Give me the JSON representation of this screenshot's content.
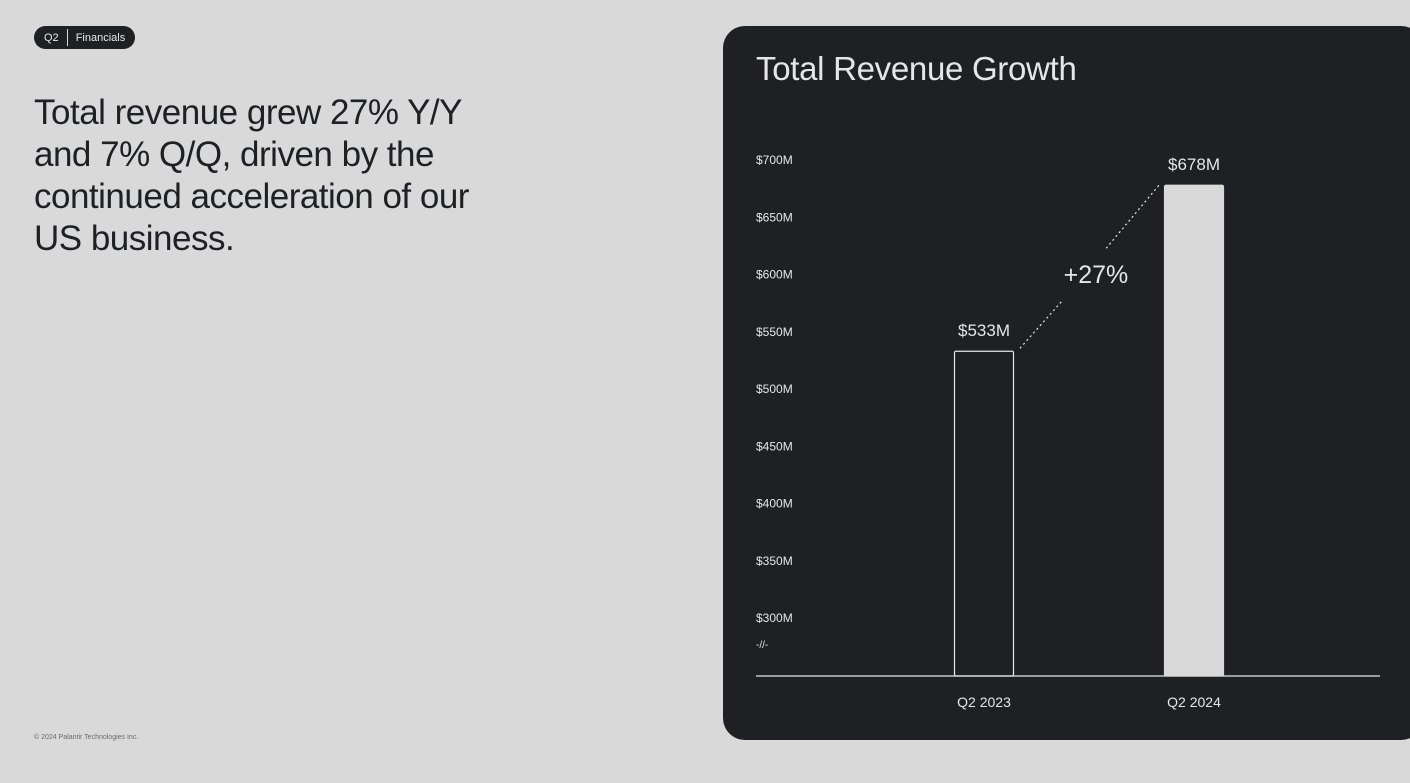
{
  "badge": {
    "quarter": "Q2",
    "section": "Financials"
  },
  "headline": "Total revenue grew 27% Y/Y and 7% Q/Q, driven by the continued acceleration of our US business.",
  "footer": "© 2024 Palantir Technologies Inc.",
  "colors": {
    "page_background": "#d9d9d9",
    "panel_background": "#1f2023",
    "bar_fill": "#d9d9d9",
    "text_light": "#e6e6e6"
  },
  "chart_data": {
    "type": "bar",
    "title": "Total Revenue Growth",
    "categories": [
      "Q2 2023",
      "Q2 2024"
    ],
    "values": [
      533,
      678
    ],
    "value_labels": [
      "$533M",
      "$678M"
    ],
    "bar_styles": [
      "outline",
      "filled"
    ],
    "ylabel": "",
    "xlabel": "",
    "ylim": [
      300,
      700
    ],
    "yticks": [
      700,
      650,
      600,
      550,
      500,
      450,
      400,
      350,
      300
    ],
    "ytick_labels": [
      "$700M",
      "$650M",
      "$600M",
      "$550M",
      "$500M",
      "$450M",
      "$400M",
      "$350M",
      "$300M"
    ],
    "axis_break": "-//-",
    "annotation": {
      "text": "+27%",
      "from": "Q2 2023",
      "to": "Q2 2024"
    },
    "grid": false
  }
}
